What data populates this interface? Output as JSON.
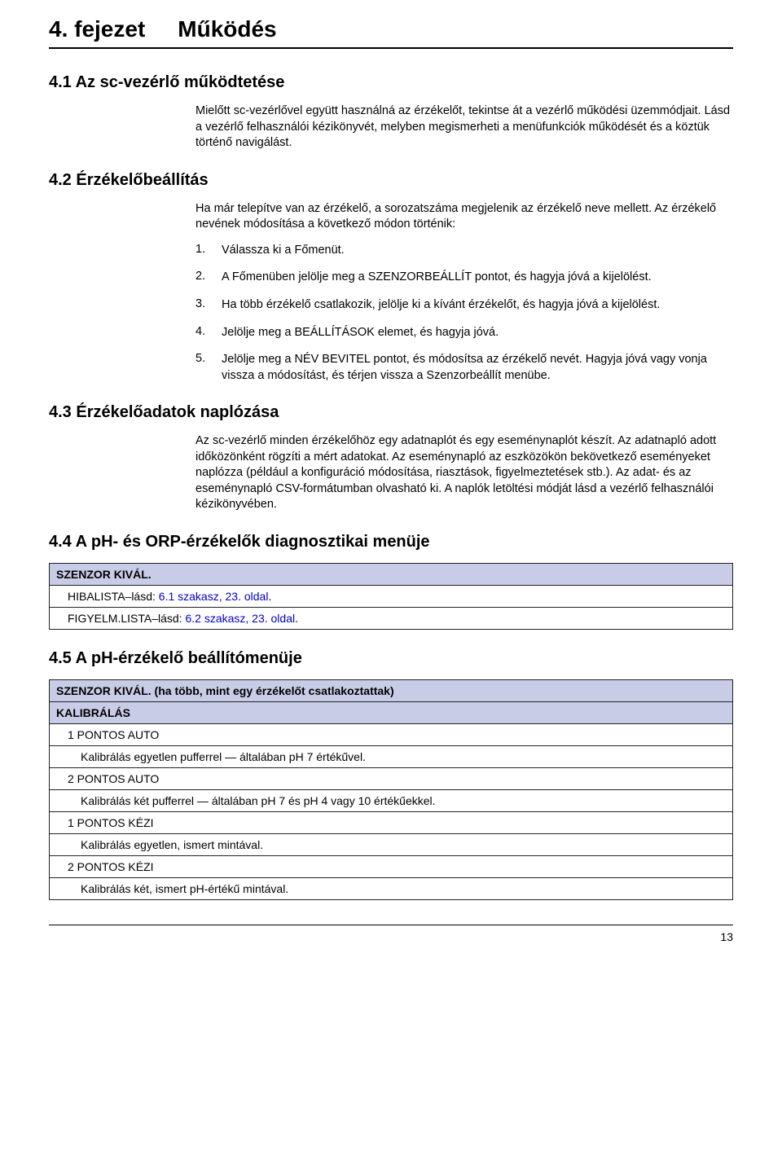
{
  "chapter": {
    "number": "4. fejezet",
    "title": "Működés"
  },
  "s41": {
    "heading": "4.1 Az sc-vezérlő működtetése",
    "p1": "Mielőtt sc-vezérlővel együtt használná az érzékelőt, tekintse át a vezérlő működési üzemmódjait. Lásd a vezérlő felhasználói kézikönyvét, melyben megismerheti a menüfunkciók működését és a köztük történő navigálást."
  },
  "s42": {
    "heading": "4.2 Érzékelőbeállítás",
    "p1": "Ha már telepítve van az érzékelő, a sorozatszáma megjelenik az érzékelő neve mellett. Az érzékelő nevének módosítása a következő módon történik:",
    "steps": [
      {
        "n": "1.",
        "t": "Válassza ki a Főmenüt."
      },
      {
        "n": "2.",
        "t": "A Főmenüben jelölje meg a SZENZORBEÁLLÍT pontot, és hagyja jóvá a kijelölést."
      },
      {
        "n": "3.",
        "t": "Ha több érzékelő csatlakozik, jelölje ki a kívánt érzékelőt, és hagyja jóvá a kijelölést."
      },
      {
        "n": "4.",
        "t": "Jelölje meg a BEÁLLÍTÁSOK elemet, és hagyja jóvá."
      },
      {
        "n": "5.",
        "t": "Jelölje meg a NÉV BEVITEL pontot, és módosítsa az érzékelő nevét. Hagyja jóvá vagy vonja vissza a módosítást, és térjen vissza a Szenzorbeállít menübe."
      }
    ]
  },
  "s43": {
    "heading": "4.3 Érzékelőadatok naplózása",
    "p1": "Az sc-vezérlő minden érzékelőhöz egy adatnaplót és egy eseménynaplót készít. Az adatnapló adott időközönként rögzíti a mért adatokat. Az eseménynapló az eszközökön bekövetkező eseményeket naplózza (például a konfiguráció módosítása, riasztások, figyelmeztetések stb.). Az adat- és az eseménynapló CSV-formátumban olvasható ki. A naplók letöltési módját lásd a vezérlő felhasználói kézikönyvében."
  },
  "s44": {
    "heading": "4.4 A pH- és ORP-érzékelők diagnosztikai menüje",
    "table": {
      "header": "SZENZOR KIVÁL.",
      "rows": [
        {
          "pre": "HIBALISTA–lásd: ",
          "link": "6.1 szakasz, 23. oldal",
          "post": "."
        },
        {
          "pre": "FIGYELM.LISTA–lásd: ",
          "link": "6.2 szakasz, 23. oldal",
          "post": "."
        }
      ]
    }
  },
  "s45": {
    "heading": "4.5 A pH-érzékelő beállítómenüje",
    "table": {
      "header1": "SZENZOR KIVÁL. (ha több, mint egy érzékelőt csatlakoztattak)",
      "header2": "KALIBRÁLÁS",
      "rows": [
        {
          "label": "1 PONTOS AUTO"
        },
        {
          "desc": "Kalibrálás egyetlen pufferrel — általában pH 7 értékűvel."
        },
        {
          "label": "2 PONTOS AUTO"
        },
        {
          "desc": "Kalibrálás két pufferrel — általában pH 7 és pH 4 vagy 10 értékűekkel."
        },
        {
          "label": "1 PONTOS KÉZI"
        },
        {
          "desc": "Kalibrálás egyetlen, ismert mintával."
        },
        {
          "label": "2 PONTOS KÉZI"
        },
        {
          "desc": "Kalibrálás két, ismert pH-értékű mintával."
        }
      ]
    }
  },
  "page": "13",
  "colors": {
    "link": "#0000cc",
    "table_header_bg": "#c8cce6",
    "border": "#222222",
    "text": "#000000",
    "bg": "#ffffff"
  }
}
